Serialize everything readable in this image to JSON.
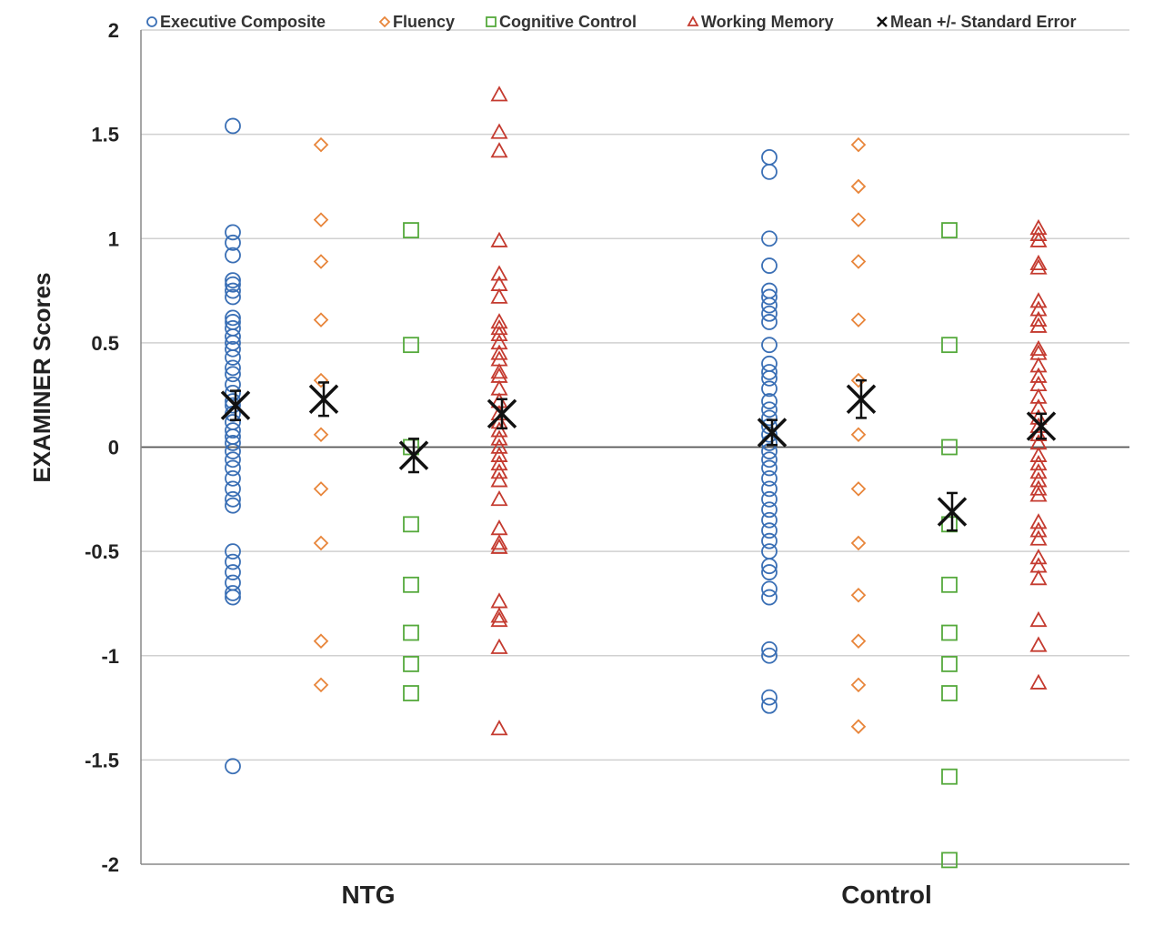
{
  "chart_data": {
    "type": "scatter",
    "ylabel": "EXAMINER Scores",
    "ylim": [
      -2,
      2
    ],
    "yticks": [
      "2",
      "1.5",
      "1",
      "0.5",
      "0",
      "-0.5",
      "-1",
      "-1.5",
      "-2"
    ],
    "ytick_values": [
      2,
      1.5,
      1,
      0.5,
      0,
      -0.5,
      -1,
      -1.5,
      -2
    ],
    "categories": [
      "NTG",
      "Control"
    ],
    "grid": true,
    "legend_position": "top",
    "series": [
      {
        "name": "Executive Composite",
        "marker": "circle",
        "color": "#3a6fb5",
        "values": [
          [
            1.54,
            1.03,
            0.98,
            0.92,
            0.8,
            0.78,
            0.75,
            0.72,
            0.62,
            0.6,
            0.57,
            0.53,
            0.5,
            0.47,
            0.43,
            0.38,
            0.35,
            0.3,
            0.26,
            0.22,
            0.2,
            0.16,
            0.12,
            0.08,
            0.05,
            0.02,
            -0.02,
            -0.06,
            -0.1,
            -0.15,
            -0.2,
            -0.25,
            -0.28,
            -0.5,
            -0.55,
            -0.6,
            -0.65,
            -0.7,
            -0.72,
            -1.53
          ],
          [
            1.39,
            1.32,
            1.0,
            0.87,
            0.75,
            0.72,
            0.68,
            0.64,
            0.6,
            0.49,
            0.4,
            0.36,
            0.33,
            0.28,
            0.22,
            0.18,
            0.14,
            0.1,
            0.06,
            0.02,
            -0.02,
            -0.06,
            -0.1,
            -0.15,
            -0.2,
            -0.25,
            -0.3,
            -0.35,
            -0.4,
            -0.45,
            -0.5,
            -0.57,
            -0.6,
            -0.68,
            -0.72,
            -0.97,
            -1.0,
            -1.2,
            -1.24
          ]
        ]
      },
      {
        "name": "Fluency",
        "marker": "diamond",
        "color": "#e8853a",
        "values": [
          [
            1.45,
            1.09,
            0.89,
            0.61,
            0.32,
            0.06,
            -0.2,
            -0.46,
            -0.93,
            -1.14
          ],
          [
            1.45,
            1.25,
            1.09,
            0.89,
            0.61,
            0.32,
            0.06,
            -0.2,
            -0.46,
            -0.71,
            -0.93,
            -1.14,
            -1.34
          ]
        ]
      },
      {
        "name": "Cognitive Control",
        "marker": "square",
        "color": "#55a93c",
        "values": [
          [
            1.04,
            0.49,
            0.0,
            -0.37,
            -0.66,
            -0.89,
            -1.04,
            -1.18
          ],
          [
            1.04,
            0.49,
            0.0,
            -0.37,
            -0.66,
            -0.89,
            -1.04,
            -1.18,
            -1.58,
            -1.98
          ]
        ]
      },
      {
        "name": "Working Memory",
        "marker": "triangle",
        "color": "#c43a2f",
        "values": [
          [
            1.69,
            1.51,
            1.42,
            0.99,
            0.83,
            0.78,
            0.72,
            0.6,
            0.57,
            0.54,
            0.5,
            0.45,
            0.42,
            0.36,
            0.34,
            0.28,
            0.22,
            0.16,
            0.12,
            0.08,
            0.04,
            0.0,
            -0.04,
            -0.08,
            -0.12,
            -0.16,
            -0.25,
            -0.39,
            -0.46,
            -0.48,
            -0.74,
            -0.81,
            -0.83,
            -0.96,
            -1.35
          ],
          [
            1.05,
            1.02,
            0.99,
            0.88,
            0.86,
            0.7,
            0.66,
            0.61,
            0.58,
            0.47,
            0.45,
            0.39,
            0.34,
            0.3,
            0.24,
            0.19,
            0.14,
            0.1,
            0.06,
            0.02,
            -0.04,
            -0.08,
            -0.12,
            -0.16,
            -0.2,
            -0.23,
            -0.36,
            -0.4,
            -0.44,
            -0.53,
            -0.57,
            -0.63,
            -0.83,
            -0.95,
            -1.13
          ]
        ]
      }
    ],
    "mean_se": {
      "name": "Mean +/- Standard Error",
      "marker": "x",
      "color": "#111111",
      "points": [
        [
          {
            "mean": 0.2,
            "se": 0.07
          },
          {
            "mean": 0.23,
            "se": 0.08
          },
          {
            "mean": -0.04,
            "se": 0.08
          },
          {
            "mean": 0.16,
            "se": 0.07
          }
        ],
        [
          {
            "mean": 0.07,
            "se": 0.06
          },
          {
            "mean": 0.23,
            "se": 0.09
          },
          {
            "mean": -0.31,
            "se": 0.09
          },
          {
            "mean": 0.1,
            "se": 0.06
          }
        ]
      ]
    }
  }
}
